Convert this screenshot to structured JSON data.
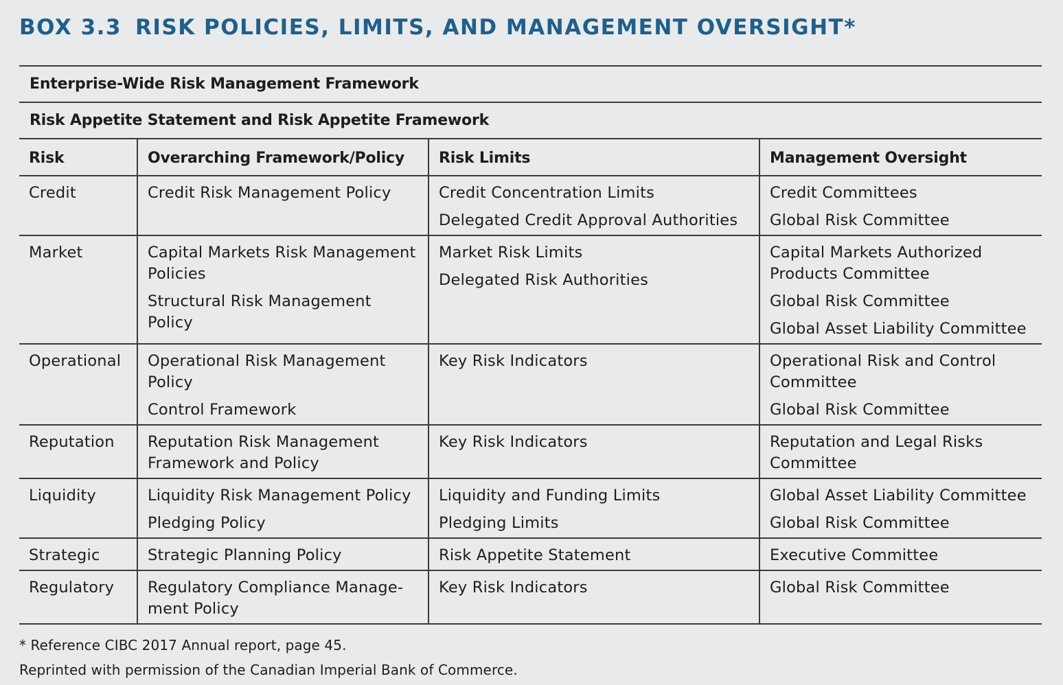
{
  "box": {
    "number": "BOX 3.3",
    "title": "RISK POLICIES, LIMITS, AND MANAGEMENT OVERSIGHT*",
    "title_color": "#1f5f8b"
  },
  "framework_header": "Enterprise-Wide Risk Management Framework",
  "appetite_header": "Risk Appetite Statement and Risk Appetite Framework",
  "columns": [
    "Risk",
    "Overarching Framework/Policy",
    "Risk Limits",
    "Management Oversight"
  ],
  "rows": [
    {
      "risk": "Credit",
      "policy": [
        "Credit Risk Management Policy"
      ],
      "limits": [
        "Credit Concentration Limits",
        "Delegated Credit Approval Authorities"
      ],
      "oversight": [
        "Credit Committees",
        "Global Risk Committee"
      ]
    },
    {
      "risk": "Market",
      "policy": [
        "Capital Markets Risk Management Policies",
        "Structural Risk Management Policy"
      ],
      "limits": [
        "Market Risk Limits",
        "Delegated Risk Authorities"
      ],
      "oversight": [
        "Capital Markets Authorized Products Committee",
        "Global Risk Committee",
        "Global Asset Liability Committee"
      ]
    },
    {
      "risk": "Operational",
      "policy": [
        "Operational Risk Management Policy",
        "Control Framework"
      ],
      "limits": [
        "Key Risk Indicators"
      ],
      "oversight": [
        "Operational Risk and Control Committee",
        "Global Risk Committee"
      ]
    },
    {
      "risk": "Reputation",
      "policy": [
        "Reputation Risk Management Framework and Policy"
      ],
      "limits": [
        "Key Risk Indicators"
      ],
      "oversight": [
        "Reputation and Legal Risks Committee"
      ]
    },
    {
      "risk": "Liquidity",
      "policy": [
        "Liquidity Risk Management Policy",
        "Pledging Policy"
      ],
      "limits": [
        "Liquidity and Funding Limits",
        "Pledging Limits"
      ],
      "oversight": [
        "Global Asset Liability Committee",
        "Global Risk Committee"
      ]
    },
    {
      "risk": "Strategic",
      "policy": [
        "Strategic Planning Policy"
      ],
      "limits": [
        "Risk Appetite Statement"
      ],
      "oversight": [
        "Executive Committee"
      ]
    },
    {
      "risk": "Regulatory",
      "policy": [
        "Regulatory Compliance Manage-ment Policy"
      ],
      "limits": [
        "Key Risk Indicators"
      ],
      "oversight": [
        "Global Risk Committee"
      ]
    }
  ],
  "footnotes": [
    "* Reference CIBC 2017 Annual report, page 45.",
    "Reprinted with permission of the Canadian Imperial Bank of Commerce."
  ]
}
